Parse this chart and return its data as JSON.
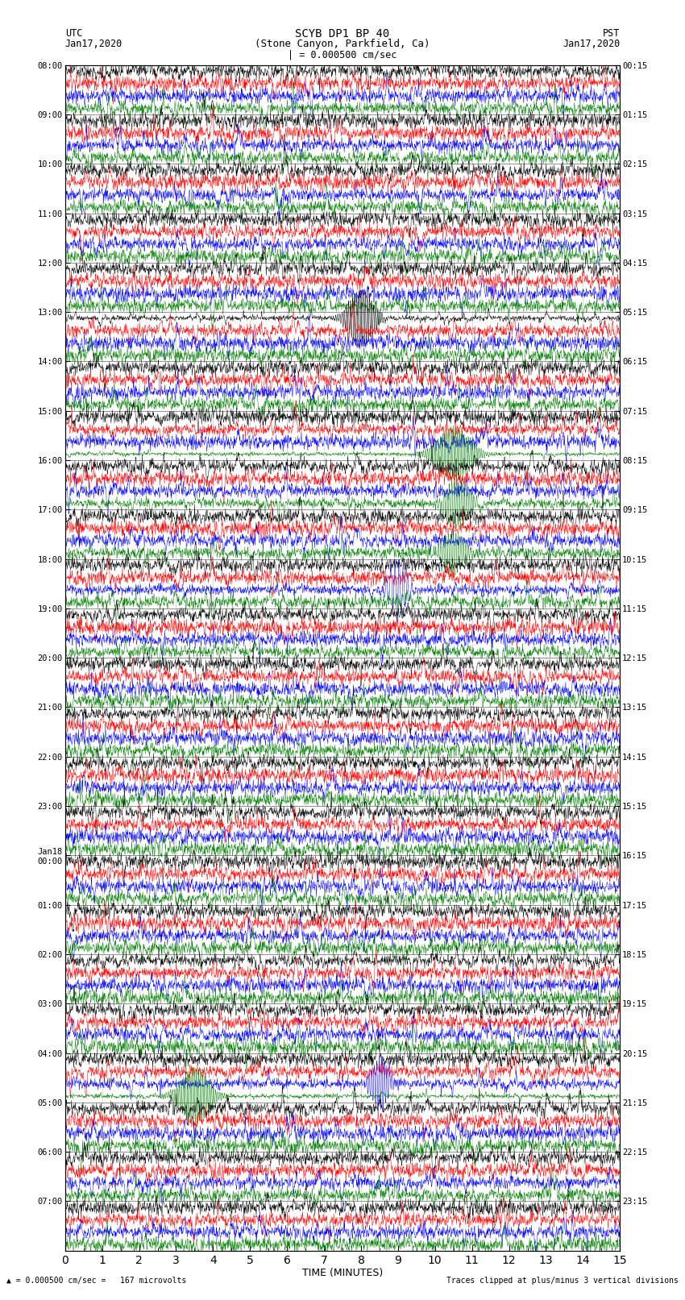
{
  "title_line1": "SCYB DP1 BP 40",
  "title_line2": "(Stone Canyon, Parkfield, Ca)",
  "scale_text": "| = 0.000500 cm/sec",
  "left_date": "Jan17,2020",
  "right_timezone": "PST",
  "right_date": "Jan17,2020",
  "utc_label": "UTC",
  "bottom_left_note": "= 0.000500 cm/sec =   167 microvolts",
  "bottom_right_note": "Traces clipped at plus/minus 3 vertical divisions",
  "xlabel": "TIME (MINUTES)",
  "trace_colors": [
    "black",
    "red",
    "blue",
    "green"
  ],
  "num_rows": 24,
  "traces_per_row": 4,
  "minutes_per_row": 15,
  "left_times_utc": [
    "08:00",
    "09:00",
    "10:00",
    "11:00",
    "12:00",
    "13:00",
    "14:00",
    "15:00",
    "16:00",
    "17:00",
    "18:00",
    "19:00",
    "20:00",
    "21:00",
    "22:00",
    "23:00",
    "Jan18\n00:00",
    "01:00",
    "02:00",
    "03:00",
    "04:00",
    "05:00",
    "06:00",
    "07:00"
  ],
  "right_times_pst": [
    "00:15",
    "01:15",
    "02:15",
    "03:15",
    "04:15",
    "05:15",
    "06:15",
    "07:15",
    "08:15",
    "09:15",
    "10:15",
    "11:15",
    "12:15",
    "13:15",
    "14:15",
    "15:15",
    "16:15",
    "17:15",
    "18:15",
    "19:15",
    "20:15",
    "21:15",
    "22:15",
    "23:15"
  ],
  "fig_width": 8.5,
  "fig_height": 16.13,
  "background_color": "white",
  "plot_bg_color": "white",
  "spine_color": "black"
}
